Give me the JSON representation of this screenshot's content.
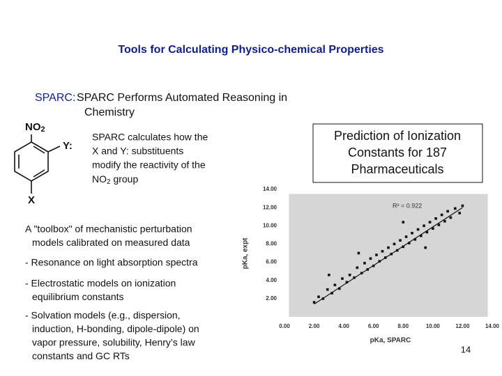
{
  "title": "Tools for Calculating Physico-chemical Properties",
  "heading": {
    "label": "SPARC:",
    "lines": [
      "SPARC Performs Automated Reasoning in",
      "Chemistry"
    ]
  },
  "molecule": {
    "top_group": [
      "NO",
      "2"
    ],
    "side_group": "Y:",
    "bottom_group": "X"
  },
  "description": {
    "lines": [
      "SPARC calculates how the",
      "X and Y: substituents",
      "modify the reactivity of the"
    ],
    "last_line": [
      "NO",
      "2",
      " group"
    ]
  },
  "prediction_box": [
    "Prediction of Ionization",
    "Constants for 187",
    "Pharmaceuticals"
  ],
  "toolbox": [
    [
      "A \"toolbox\" of mechanistic perturbation",
      "models calibrated on measured data"
    ],
    [
      "- Resonance on light absorption spectra"
    ],
    [
      "- Electrostatic models on ionization",
      "equilibrium constants"
    ],
    [
      "- Solvation models (e.g., dispersion,",
      "induction, H-bonding, dipole-dipole) on",
      "vapor pressure, solubility, Henry’s law",
      "constants and GC RTs"
    ]
  ],
  "page_number": "14",
  "chart_data": {
    "type": "scatter",
    "x_label": "pKa, SPARC",
    "y_label": "pKa, expt",
    "annotation": "R² = 0.922",
    "color": "#111111",
    "background": "#d6d6d6",
    "xlim": [
      0,
      14
    ],
    "ylim": [
      0,
      14
    ],
    "xticks": [
      {
        "value": 0,
        "label": "0.00"
      },
      {
        "value": 2,
        "label": "2.00"
      },
      {
        "value": 4,
        "label": "4.00"
      },
      {
        "value": 6,
        "label": "6.00"
      },
      {
        "value": 8,
        "label": "8.00"
      },
      {
        "value": 10,
        "label": "10.00"
      },
      {
        "value": 12,
        "label": "12.00"
      },
      {
        "value": 14,
        "label": "14.00"
      }
    ],
    "yticks": [
      {
        "value": 2,
        "label": "2.00"
      },
      {
        "value": 4,
        "label": "4.00"
      },
      {
        "value": 6,
        "label": "6.00"
      },
      {
        "value": 8,
        "label": "8.00"
      },
      {
        "value": 10,
        "label": "10.00"
      },
      {
        "value": 12,
        "label": "12.00"
      },
      {
        "value": 14,
        "label": "14.00"
      }
    ],
    "x": [
      2.0,
      2.3,
      2.6,
      2.9,
      3.2,
      3.4,
      3.7,
      3.9,
      4.2,
      4.4,
      4.7,
      4.9,
      5.2,
      5.4,
      5.6,
      5.8,
      6.0,
      6.2,
      6.4,
      6.6,
      6.8,
      7.0,
      7.2,
      7.4,
      7.6,
      7.8,
      8.0,
      8.2,
      8.4,
      8.6,
      8.8,
      9.0,
      9.2,
      9.4,
      9.6,
      9.8,
      10.0,
      10.2,
      10.4,
      10.6,
      10.8,
      11.0,
      11.2,
      11.5,
      11.8,
      12.0,
      5.0,
      8.0,
      9.5,
      3.0
    ],
    "values": [
      1.6,
      2.2,
      2.0,
      3.0,
      2.6,
      3.5,
      3.1,
      4.2,
      3.8,
      4.6,
      4.3,
      5.4,
      4.8,
      5.9,
      5.2,
      6.4,
      5.6,
      6.8,
      6.1,
      7.2,
      6.5,
      7.6,
      6.9,
      8.0,
      7.3,
      8.4,
      7.7,
      8.8,
      8.1,
      9.2,
      8.5,
      9.6,
      8.9,
      10.0,
      9.3,
      10.4,
      9.7,
      10.8,
      10.1,
      11.2,
      10.5,
      11.6,
      10.9,
      11.9,
      11.4,
      12.2,
      7.0,
      10.4,
      7.6,
      4.6
    ],
    "fit": {
      "x": [
        2.0,
        12.0
      ],
      "values": [
        1.4,
        12.0
      ]
    }
  }
}
